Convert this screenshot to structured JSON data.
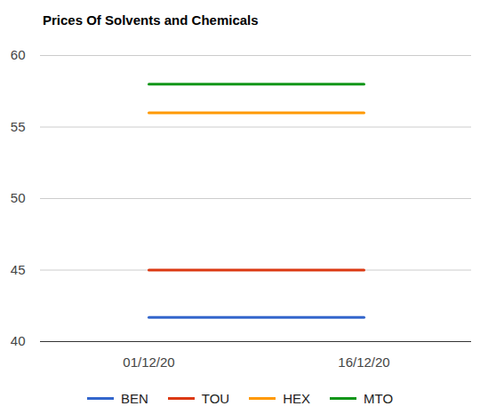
{
  "chart_data": {
    "type": "line",
    "title": "Prices Of Solvents and Chemicals",
    "x": [
      "01/12/20",
      "16/12/20"
    ],
    "series": [
      {
        "name": "BEN",
        "color": "#3366cc",
        "values": [
          41.7,
          41.7
        ]
      },
      {
        "name": "TOU",
        "color": "#dc3912",
        "values": [
          45,
          45
        ]
      },
      {
        "name": "HEX",
        "color": "#ff9900",
        "values": [
          56,
          56
        ]
      },
      {
        "name": "MTO",
        "color": "#109618",
        "values": [
          58,
          58
        ]
      }
    ],
    "ylim": [
      40,
      60
    ],
    "yticks": [
      40,
      45,
      50,
      55,
      60
    ],
    "grid": true,
    "legend": "bottom"
  }
}
